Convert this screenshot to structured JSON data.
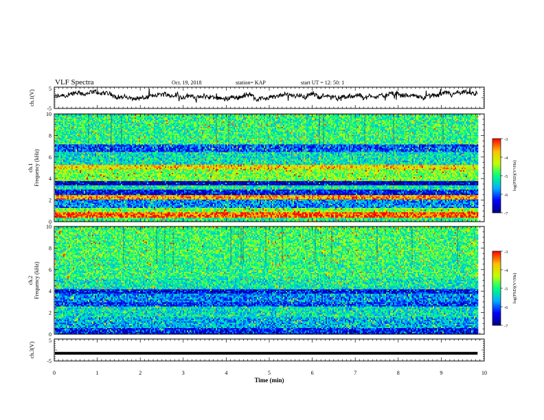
{
  "header": {
    "title": "VLF Spectra",
    "date": "Oct. 19, 2018",
    "station": "station= KAP",
    "start": "start  UT  =    12: 50: 1"
  },
  "colors": {
    "frame": "#000000",
    "colormap": [
      "#000080",
      "#0000ff",
      "#00b0ff",
      "#00ff80",
      "#c0ff00",
      "#ffc000",
      "#ff0000",
      "#ffffff"
    ]
  },
  "chart_data": [
    {
      "type": "line",
      "name": "ch1-waveform",
      "ylabel": "ch.1(V)",
      "yticklabels": [
        "5",
        "-5"
      ],
      "ylim": [
        -5,
        5
      ],
      "xlim": [
        0,
        10
      ],
      "x_extent": 9.85,
      "y_level": 0.5,
      "y_jitter": 2.0
    },
    {
      "type": "heatmap",
      "name": "ch1-spectrogram",
      "ylabel": "ch.1\nFrequency  (kHz)",
      "ylabel_lines": [
        "ch.1",
        "Frequency  (kHz)"
      ],
      "ylim": [
        0,
        10
      ],
      "yticks": [
        0,
        2,
        4,
        6,
        8,
        10
      ],
      "xlim": [
        0,
        10
      ],
      "x_extent": 9.85,
      "colorbar": {
        "label": "log(PSD)(V²/Hz)",
        "range": [
          -7,
          -3
        ],
        "ticks": [
          "-3",
          "-4",
          "-5",
          "-6",
          "-7"
        ]
      },
      "bands": [
        {
          "f0": 0.0,
          "f1": 0.4,
          "level": -5.0
        },
        {
          "f0": 0.4,
          "f1": 0.9,
          "level": -3.3
        },
        {
          "f0": 0.9,
          "f1": 1.3,
          "level": -4.6
        },
        {
          "f0": 1.3,
          "f1": 2.1,
          "level": -5.8
        },
        {
          "f0": 2.1,
          "f1": 2.5,
          "level": -3.6
        },
        {
          "f0": 2.5,
          "f1": 3.0,
          "level": -6.4
        },
        {
          "f0": 3.0,
          "f1": 3.4,
          "level": -5.2
        },
        {
          "f0": 3.4,
          "f1": 3.8,
          "level": -6.7
        },
        {
          "f0": 3.8,
          "f1": 4.9,
          "level": -4.6
        },
        {
          "f0": 4.9,
          "f1": 5.3,
          "level": -3.9
        },
        {
          "f0": 5.3,
          "f1": 6.5,
          "level": -5.3
        },
        {
          "f0": 6.5,
          "f1": 7.2,
          "level": -6.1
        },
        {
          "f0": 7.2,
          "f1": 10.0,
          "level": -5.0
        }
      ]
    },
    {
      "type": "heatmap",
      "name": "ch2-spectrogram",
      "ylabel": "ch.2\nFrequency  (kHz)",
      "ylabel_lines": [
        "ch.2",
        "Frequency  (kHz)"
      ],
      "ylim": [
        0,
        10
      ],
      "yticks": [
        0,
        2,
        4,
        6,
        8,
        10
      ],
      "xlim": [
        0,
        10
      ],
      "x_extent": 9.85,
      "colorbar": {
        "label": "log(PSD)(V²/Hz)",
        "range": [
          -7,
          -3
        ],
        "ticks": [
          "-3",
          "-4",
          "-5",
          "-6",
          "-7"
        ]
      },
      "bands": [
        {
          "f0": 0.0,
          "f1": 0.6,
          "level": -6.3
        },
        {
          "f0": 0.6,
          "f1": 1.6,
          "level": -5.6
        },
        {
          "f0": 1.6,
          "f1": 2.6,
          "level": -5.3
        },
        {
          "f0": 2.6,
          "f1": 3.0,
          "level": -6.2
        },
        {
          "f0": 3.0,
          "f1": 3.8,
          "level": -5.8
        },
        {
          "f0": 3.8,
          "f1": 4.2,
          "level": -6.4
        },
        {
          "f0": 4.2,
          "f1": 5.2,
          "level": -5.2
        },
        {
          "f0": 5.2,
          "f1": 7.0,
          "level": -5.0
        },
        {
          "f0": 7.0,
          "f1": 10.0,
          "level": -4.9
        }
      ]
    },
    {
      "type": "line",
      "name": "ch3-waveform",
      "ylabel": "ch.3(V)",
      "yticklabels": [
        "5",
        "-5"
      ],
      "ylim": [
        -5,
        5
      ],
      "xlim": [
        0,
        10
      ],
      "x_extent": 9.85,
      "y_level": -1.5,
      "y_jitter": 0
    }
  ],
  "xaxis": {
    "label": "Time  (min)",
    "ticks": [
      "0",
      "1",
      "2",
      "3",
      "4",
      "5",
      "6",
      "7",
      "8",
      "9",
      "10"
    ]
  }
}
